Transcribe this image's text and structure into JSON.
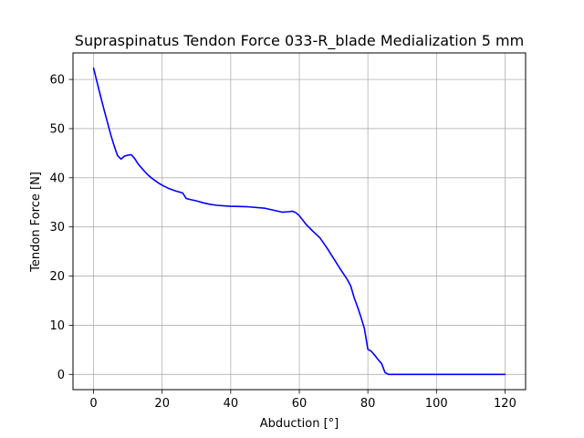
{
  "chart_data": {
    "type": "line",
    "title": "Supraspinatus Tendon Force 033-R_blade Medialization 5 mm",
    "xlabel": "Abduction [°]",
    "ylabel": "Tendon Force [N]",
    "xlim": [
      -6,
      126
    ],
    "ylim": [
      -3.1,
      65.4
    ],
    "xticks": [
      0,
      20,
      40,
      60,
      80,
      100,
      120
    ],
    "yticks": [
      0,
      10,
      20,
      30,
      40,
      50,
      60
    ],
    "grid": true,
    "series": [
      {
        "color": "#0000ff",
        "x": [
          0,
          1,
          2,
          3,
          4,
          5,
          6,
          7,
          8,
          9,
          10,
          11,
          12,
          13,
          14,
          15,
          16,
          17,
          18,
          19,
          20,
          22,
          24,
          26,
          27,
          28,
          30,
          32,
          34,
          36,
          38,
          40,
          45,
          50,
          55,
          57,
          58,
          59,
          60,
          62,
          64,
          66,
          68,
          70,
          72,
          74,
          75,
          76,
          77,
          78,
          79,
          80,
          81,
          82,
          83,
          84,
          85,
          86,
          87,
          88,
          90,
          95,
          100,
          105,
          110,
          115,
          120
        ],
        "y": [
          62.3,
          59.5,
          56.7,
          54.0,
          51.4,
          48.8,
          46.5,
          44.5,
          43.8,
          44.4,
          44.6,
          44.7,
          43.9,
          42.8,
          42.0,
          41.2,
          40.5,
          39.9,
          39.4,
          38.9,
          38.5,
          37.8,
          37.3,
          36.9,
          35.8,
          35.6,
          35.3,
          34.9,
          34.6,
          34.4,
          34.3,
          34.2,
          34.1,
          33.8,
          33.0,
          33.1,
          33.2,
          32.9,
          32.3,
          30.5,
          29.1,
          27.8,
          25.8,
          23.6,
          21.4,
          19.3,
          18.0,
          15.6,
          13.7,
          11.6,
          9.3,
          5.1,
          4.7,
          3.9,
          3.0,
          2.2,
          0.4,
          0.0,
          0.0,
          0.0,
          0.0,
          0.0,
          0.0,
          0.0,
          0.0,
          0.0,
          0.0
        ]
      }
    ]
  }
}
